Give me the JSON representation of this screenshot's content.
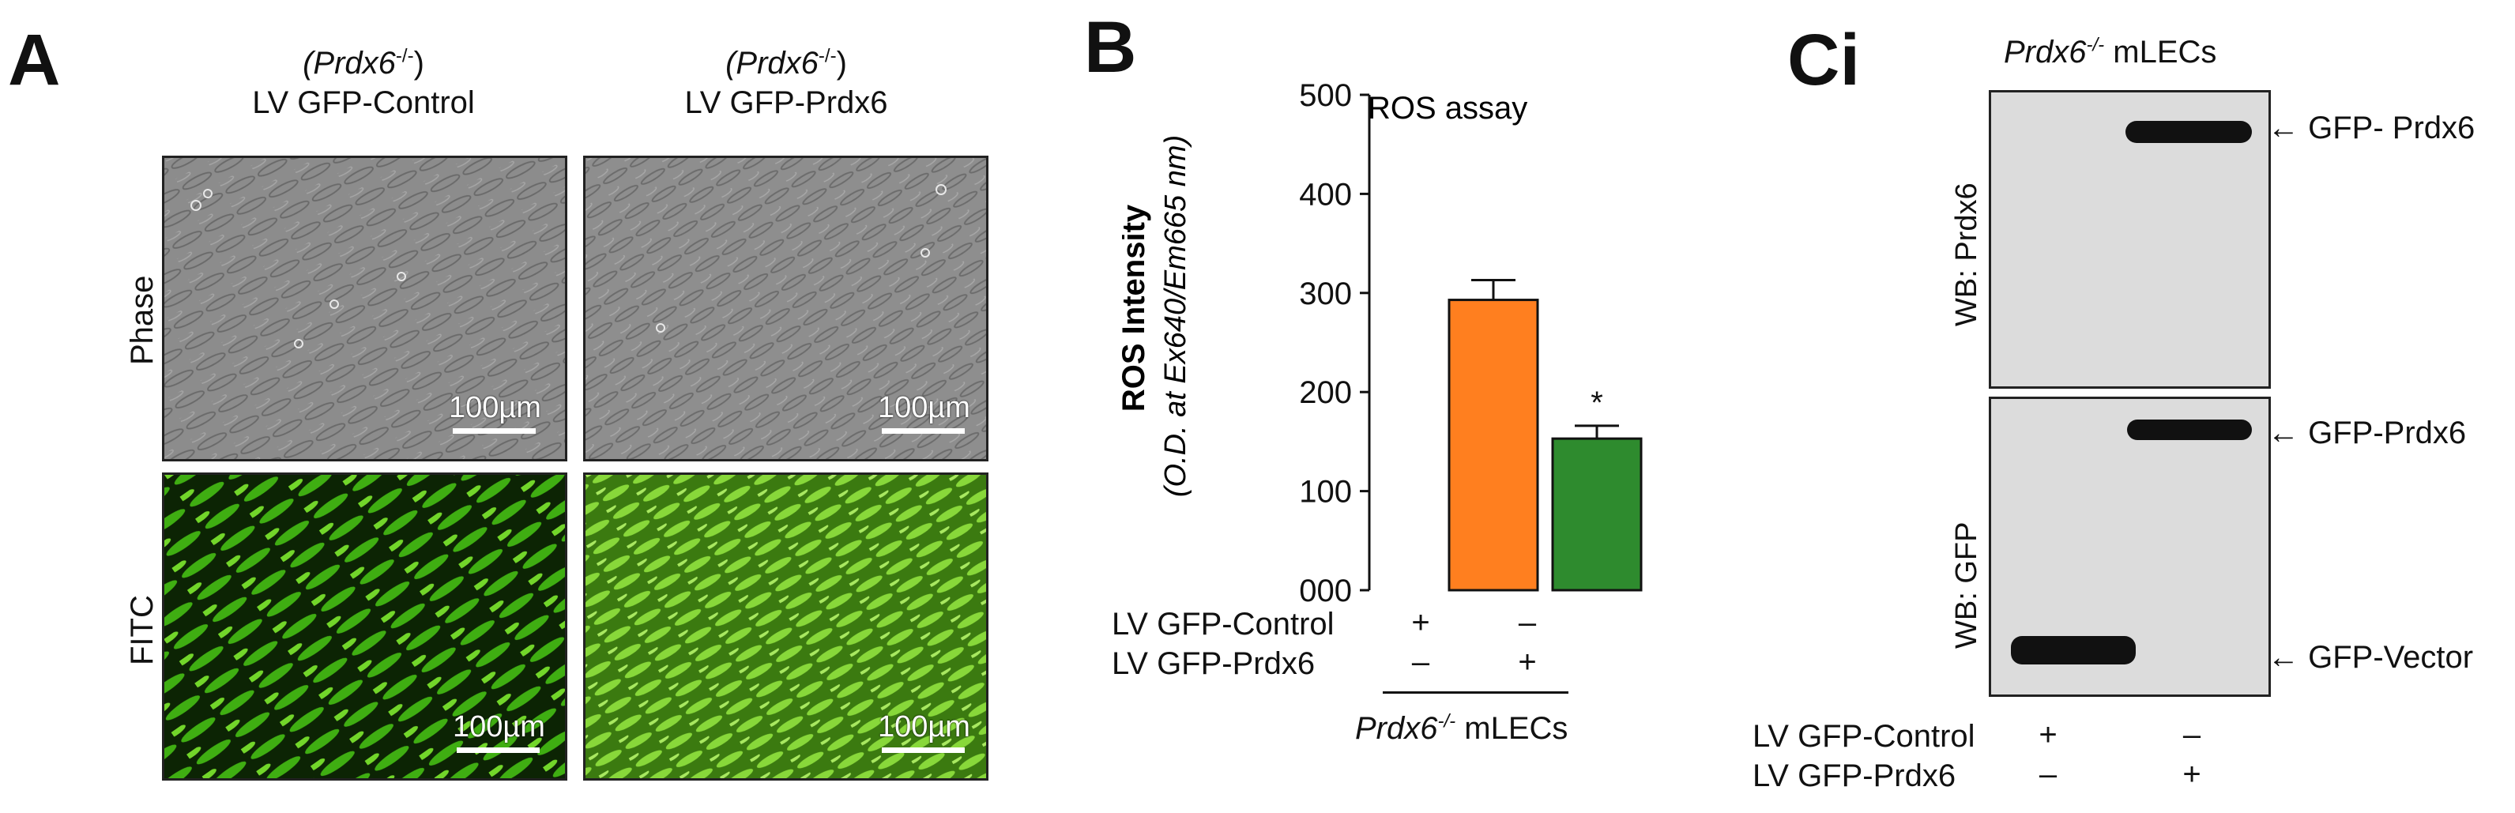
{
  "panel_a": {
    "letter": "A",
    "col1_genotype": "(Prdx6",
    "col1_sup": "-/-",
    "col1_close": ")",
    "col1_title": "LV GFP-Control",
    "col2_genotype": "(Prdx6",
    "col2_sup": "-/-",
    "col2_close": ")",
    "col2_title": "LV GFP-Prdx6",
    "row1_label": "Phase",
    "row2_label": "FITC",
    "scale_label": "100µm"
  },
  "panel_b": {
    "letter": "B",
    "ylabel_bold": "ROS Intensity",
    "ylabel_sub": "(O.D. at Ex640/Em665 nm)",
    "annotation": "ROS assay",
    "significance": "*",
    "row1_label": "LV GFP-Control",
    "row2_label": "LV GFP-Prdx6",
    "row1_marks": [
      "+",
      "–"
    ],
    "row2_marks": [
      "–",
      "+"
    ],
    "footer_gene": "Prdx6",
    "footer_sup": "-/-",
    "footer_cells": "mLECs"
  },
  "panel_c": {
    "letter": "Ci",
    "header_gene": "Prdx6",
    "header_sup": "-/-",
    "header_cells": "mLECs",
    "blot1_label": "WB: Prdx6",
    "blot2_label": "WB: GFP",
    "band1_label": "← GFP- Prdx6",
    "band2_label": "← GFP-Prdx6",
    "band3_label": "← GFP-Vector",
    "row1_label": "LV GFP-Control",
    "row2_label": "LV GFP-Prdx6",
    "row1_marks": [
      "+",
      "–"
    ],
    "row2_marks": [
      "–",
      "+"
    ]
  },
  "chart_data": {
    "type": "bar",
    "categories": [
      "LV GFP-Control",
      "LV GFP-Prdx6"
    ],
    "values": [
      293,
      153
    ],
    "errors": [
      20,
      13
    ],
    "colors": [
      "#ff7f1f",
      "#2e8b2e"
    ],
    "yticks": [
      "000",
      "100",
      "200",
      "300",
      "400",
      "500"
    ],
    "ylim": [
      0,
      500
    ],
    "title": "ROS assay",
    "xlabel": "",
    "ylabel": "ROS Intensity (O.D. at Ex640/Em665 nm)"
  }
}
